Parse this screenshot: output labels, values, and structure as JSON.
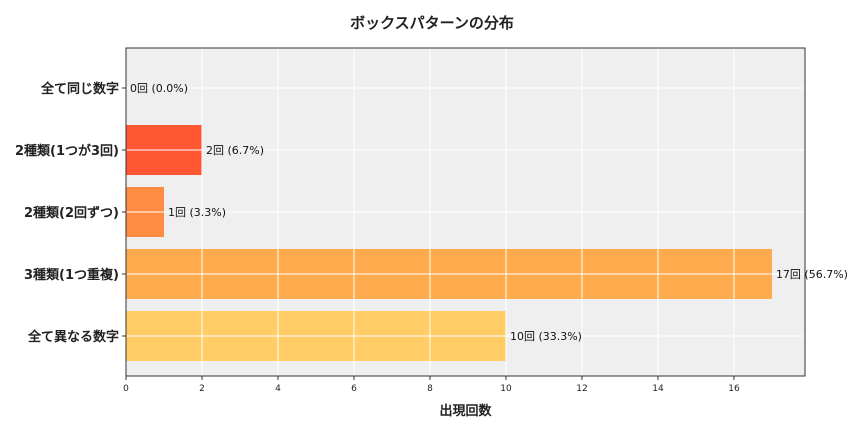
{
  "chart_data": {
    "type": "bar",
    "orientation": "horizontal",
    "title": "ボックスパターンの分布",
    "xlabel": "出現回数",
    "ylabel": "",
    "categories": [
      "全て同じ数字",
      "2種類(1つが3回)",
      "2種類(2回ずつ)",
      "3種類(1つ重複)",
      "全て異なる数字"
    ],
    "values": [
      0,
      2,
      1,
      17,
      10
    ],
    "data_labels": [
      "0回 (0.0%)",
      "2回 (6.7%)",
      "1回 (3.3%)",
      "17回 (56.7%)",
      "10回 (33.3%)"
    ],
    "colors": [
      "#FF4500",
      "#FF5733",
      "#FF8C42",
      "#FFAA4C",
      "#FFCC66"
    ],
    "xlim": [
      0,
      17.87
    ],
    "xticks": [
      0,
      2,
      4,
      6,
      8,
      10,
      12,
      14,
      16
    ],
    "grid": true,
    "background": "#EFEFEF"
  }
}
